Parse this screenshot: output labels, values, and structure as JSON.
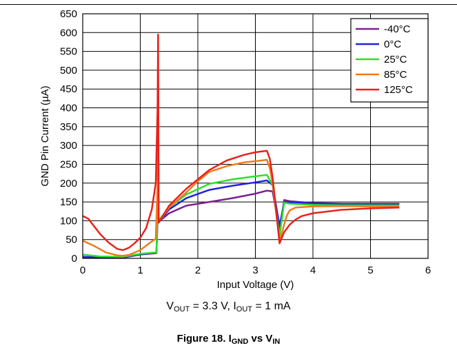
{
  "chart_data": {
    "type": "line",
    "xlabel": "Input Voltage (V)",
    "ylabel": "GND Pin Current (µA)",
    "xlim": [
      0,
      6
    ],
    "ylim": [
      0,
      650
    ],
    "xticks": [
      "0",
      "1",
      "2",
      "3",
      "4",
      "5",
      "6"
    ],
    "yticks": [
      "0",
      "50",
      "100",
      "150",
      "200",
      "250",
      "300",
      "350",
      "400",
      "450",
      "500",
      "550",
      "600",
      "650"
    ],
    "grid": true,
    "legend_position": "top-right",
    "series": [
      {
        "name": "-40°C",
        "color": "#7B1F8F",
        "x": [
          0,
          0.3,
          0.7,
          1.0,
          1.28,
          1.3,
          1.31,
          1.32,
          1.34,
          1.5,
          1.8,
          2.2,
          2.6,
          3.0,
          3.2,
          3.3,
          3.42,
          3.5,
          3.6,
          4.0,
          4.5,
          5.0,
          5.5
        ],
        "y": [
          3,
          2,
          2,
          10,
          14,
          100,
          220,
          95,
          100,
          120,
          140,
          150,
          160,
          172,
          180,
          178,
          75,
          155,
          152,
          147,
          145,
          145,
          145
        ]
      },
      {
        "name": "0°C",
        "color": "#1E22E0",
        "x": [
          0,
          0.3,
          0.7,
          1.0,
          1.28,
          1.3,
          1.31,
          1.32,
          1.34,
          1.5,
          1.8,
          2.2,
          2.6,
          3.0,
          3.2,
          3.3,
          3.42,
          3.5,
          3.6,
          4.0,
          4.5,
          5.0,
          5.5
        ],
        "y": [
          4,
          3,
          3,
          11,
          15,
          110,
          260,
          95,
          100,
          130,
          160,
          182,
          193,
          202,
          207,
          195,
          85,
          150,
          149,
          146,
          144,
          144,
          144
        ]
      },
      {
        "name": "25°C",
        "color": "#2BE02B",
        "x": [
          0,
          0.3,
          0.7,
          1.0,
          1.28,
          1.3,
          1.31,
          1.32,
          1.34,
          1.5,
          1.8,
          2.2,
          2.6,
          3.0,
          3.2,
          3.3,
          3.42,
          3.5,
          3.6,
          4.0,
          4.5,
          5.0,
          5.5
        ],
        "y": [
          10,
          5,
          4,
          12,
          16,
          120,
          300,
          95,
          105,
          135,
          170,
          198,
          210,
          218,
          222,
          195,
          60,
          148,
          145,
          142,
          141,
          141,
          141
        ]
      },
      {
        "name": "85°C",
        "color": "#F07A1A",
        "x": [
          0,
          0.2,
          0.4,
          0.6,
          0.7,
          0.8,
          1.0,
          1.2,
          1.27,
          1.3,
          1.31,
          1.32,
          1.34,
          1.5,
          1.8,
          2.0,
          2.2,
          2.5,
          2.8,
          3.1,
          3.2,
          3.25,
          3.3,
          3.42,
          3.5,
          3.55,
          3.6,
          3.7,
          4.0,
          4.5,
          5.0,
          5.5
        ],
        "y": [
          47,
          33,
          16,
          8,
          7,
          9,
          22,
          45,
          52,
          200,
          470,
          100,
          100,
          135,
          175,
          205,
          230,
          245,
          255,
          260,
          262,
          240,
          200,
          45,
          90,
          115,
          128,
          135,
          138,
          139,
          138,
          138
        ]
      },
      {
        "name": "125°C",
        "color": "#E8211B",
        "x": [
          0,
          0.1,
          0.2,
          0.3,
          0.45,
          0.6,
          0.7,
          0.8,
          0.9,
          1.0,
          1.1,
          1.2,
          1.27,
          1.3,
          1.31,
          1.32,
          1.34,
          1.5,
          1.8,
          2.0,
          2.2,
          2.5,
          2.8,
          3.0,
          3.2,
          3.25,
          3.3,
          3.42,
          3.5,
          3.6,
          3.7,
          3.8,
          4.0,
          4.5,
          5.0,
          5.5
        ],
        "y": [
          113,
          105,
          85,
          65,
          42,
          25,
          22,
          28,
          40,
          55,
          80,
          130,
          200,
          400,
          595,
          95,
          100,
          140,
          185,
          210,
          235,
          260,
          275,
          282,
          286,
          265,
          215,
          40,
          70,
          90,
          103,
          112,
          120,
          129,
          133,
          135
        ]
      }
    ]
  },
  "captions": {
    "condition_v": "V",
    "condition_v_sub": "OUT",
    "condition_mid": " = 3.3 V, I",
    "condition_i_sub": "OUT",
    "condition_tail": " = 1 mA",
    "figure_prefix": "Figure 18. I",
    "figure_sub1": "GND",
    "figure_mid": " vs V",
    "figure_sub2": "IN"
  }
}
